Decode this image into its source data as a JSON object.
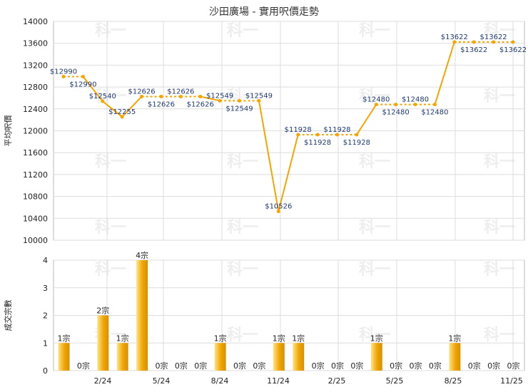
{
  "chart_data": [
    {
      "type": "line",
      "title": "沙田廣場 - 實用呎價走勢",
      "ylabel": "平均呎價",
      "ylim": [
        10000,
        14000
      ],
      "y_ticks": [
        10000,
        10400,
        10800,
        11200,
        11600,
        12000,
        12400,
        12800,
        13200,
        13600,
        14000
      ],
      "grid": true,
      "line_color": "#f5a400",
      "series": [
        {
          "values": [
            12990,
            12990,
            12540,
            12255,
            12626,
            12626,
            12626,
            12626,
            12549,
            12549,
            12549,
            10526,
            11928,
            11928,
            11928,
            11928,
            12480,
            12480,
            12480,
            12480,
            13622,
            13622,
            13622,
            13622
          ],
          "labels": [
            "$12990",
            "$12990",
            "$12540",
            "$12255",
            "$12626",
            "$12626",
            "$12626",
            "$12626",
            "$12549",
            "$12549",
            "$12549",
            "$10526",
            "$11928",
            "$11928",
            "$11928",
            "$11928",
            "$12480",
            "$12480",
            "$12480",
            "$12480",
            "$13622",
            "$13622",
            "$13622",
            "$13622"
          ]
        }
      ]
    },
    {
      "type": "bar",
      "ylabel": "成交宗數",
      "ylim": [
        0,
        4
      ],
      "y_ticks": [
        0,
        1,
        2,
        3,
        4
      ],
      "grid": true,
      "bar_color": "#f0a500",
      "x_tick_labels": [
        "2/24",
        "5/24",
        "8/24",
        "11/24",
        "2/25",
        "5/25",
        "8/25",
        "11/25"
      ],
      "values": [
        1,
        0,
        2,
        1,
        4,
        0,
        0,
        0,
        1,
        0,
        0,
        1,
        1,
        0,
        0,
        0,
        1,
        0,
        0,
        0,
        1,
        0,
        0,
        0
      ],
      "labels": [
        "1宗",
        "0宗",
        "2宗",
        "1宗",
        "4宗",
        "0宗",
        "0宗",
        "0宗",
        "1宗",
        "0宗",
        "0宗",
        "1宗",
        "1宗",
        "0宗",
        "0宗",
        "0宗",
        "1宗",
        "0宗",
        "0宗",
        "0宗",
        "1宗",
        "0宗",
        "0宗",
        "0宗"
      ]
    }
  ],
  "watermark": "科一"
}
